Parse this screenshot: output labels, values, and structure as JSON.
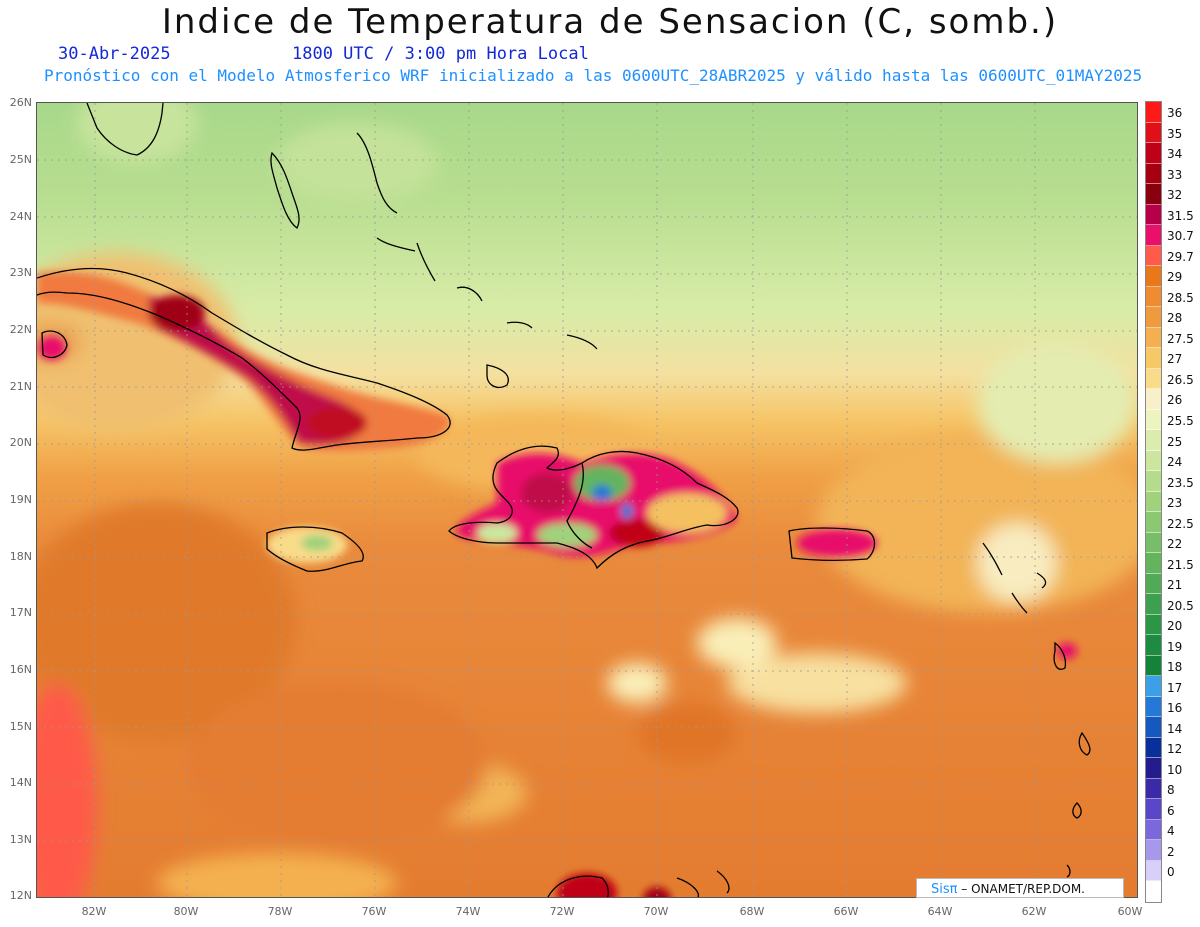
{
  "title": "Indice de Temperatura de Sensacion (C, somb.)",
  "date": "30-Abr-2025",
  "time": "1800 UTC / 3:00 pm Hora Local",
  "subtitle": "Pronóstico con el Modelo Atmosferico WRF inicializado a las 0600UTC_28ABR2025 y válido hasta las  0600UTC_01MAY2025",
  "credit": {
    "sis": "Sisπ",
    "org": " – ONAMET/REP.DOM."
  },
  "lat_labels": [
    "26N",
    "25N",
    "24N",
    "23N",
    "22N",
    "21N",
    "20N",
    "19N",
    "18N",
    "17N",
    "16N",
    "15N",
    "14N",
    "13N",
    "12N"
  ],
  "lon_labels": [
    "82W",
    "80W",
    "78W",
    "76W",
    "74W",
    "72W",
    "70W",
    "68W",
    "66W",
    "64W",
    "62W",
    "60W"
  ],
  "colorbar": {
    "labels": [
      "36",
      "35",
      "34",
      "33",
      "32",
      "31.5",
      "30.7",
      "29.7",
      "29",
      "28.5",
      "28",
      "27.5",
      "27",
      "26.5",
      "26",
      "25.5",
      "25",
      "24",
      "23.5",
      "23",
      "22.5",
      "22",
      "21.5",
      "21",
      "20.5",
      "20",
      "19",
      "18",
      "17",
      "16",
      "14",
      "12",
      "10",
      "8",
      "6",
      "4",
      "2",
      "0"
    ],
    "colors": [
      "#ff1a1a",
      "#e0101a",
      "#c00018",
      "#a40012",
      "#8a000e",
      "#b8004a",
      "#e8106a",
      "#ff5a4a",
      "#e8781a",
      "#ef8c32",
      "#f09a3e",
      "#f4b050",
      "#f6c866",
      "#f8dc8a",
      "#f8f0c8",
      "#eef4c0",
      "#dcecae",
      "#cce6a0",
      "#b4dc8c",
      "#a0d27c",
      "#8cc872",
      "#78be68",
      "#64b45e",
      "#50aa56",
      "#3ca04e",
      "#2a9646",
      "#1e8c40",
      "#14823a",
      "#3ca0e8",
      "#2478d8",
      "#1458c0",
      "#0a2e9a",
      "#241c8c",
      "#3a2aa8",
      "#5a46c8",
      "#7a68dc",
      "#a898ec",
      "#d8d0f8"
    ]
  }
}
